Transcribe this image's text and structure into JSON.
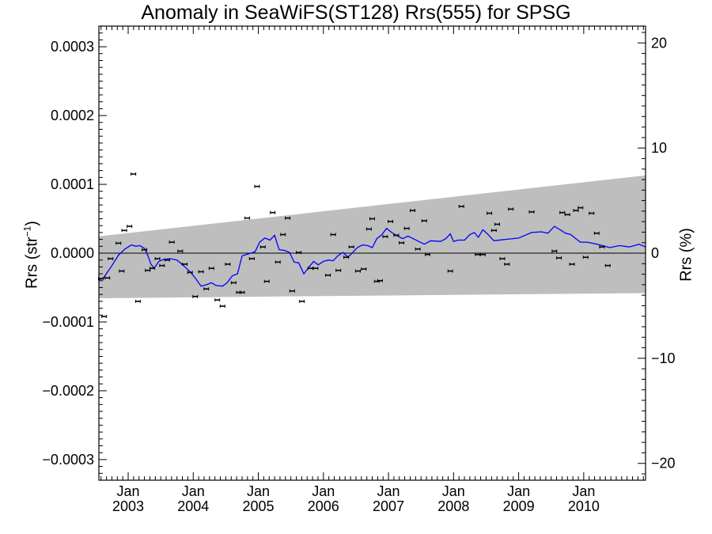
{
  "chart_data": {
    "type": "scatter",
    "title": "Anomaly in SeaWiFS(ST128) Rrs(555) for SPSG",
    "ylabel": {
      "main": "Rrs (str",
      "sup": "−1",
      "close": ")"
    },
    "y2label": "Rrs (%)",
    "ylim": [
      -0.00033,
      0.00033
    ],
    "y2lim": [
      -21.6,
      21.6
    ],
    "xlim": [
      2002.55,
      2010.95
    ],
    "grid": false,
    "y_ticks": [
      {
        "value": 0.0003,
        "label": "0.0003"
      },
      {
        "value": 0.0002,
        "label": "0.0002"
      },
      {
        "value": 0.0001,
        "label": "0.0001"
      },
      {
        "value": 0.0,
        "label": "0.0000"
      },
      {
        "value": -0.0001,
        "label": "−0.0001"
      },
      {
        "value": -0.0002,
        "label": "−0.0002"
      },
      {
        "value": -0.0003,
        "label": "−0.0003"
      }
    ],
    "y2_ticks": [
      {
        "value": 20,
        "label": "20"
      },
      {
        "value": 10,
        "label": "10"
      },
      {
        "value": 0,
        "label": "0"
      },
      {
        "value": -10,
        "label": "−10"
      },
      {
        "value": -20,
        "label": "−20"
      }
    ],
    "x_ticks": [
      {
        "value": 2003.0,
        "month": "Jan",
        "year": "2003"
      },
      {
        "value": 2004.0,
        "month": "Jan",
        "year": "2004"
      },
      {
        "value": 2005.0,
        "month": "Jan",
        "year": "2005"
      },
      {
        "value": 2006.0,
        "month": "Jan",
        "year": "2006"
      },
      {
        "value": 2007.0,
        "month": "Jan",
        "year": "2007"
      },
      {
        "value": 2008.0,
        "month": "Jan",
        "year": "2008"
      },
      {
        "value": 2009.0,
        "month": "Jan",
        "year": "2009"
      },
      {
        "value": 2010.0,
        "month": "Jan",
        "year": "2010"
      }
    ],
    "band": {
      "upper": [
        [
          2002.55,
          2.45e-05
        ],
        [
          2010.95,
          0.000113
        ]
      ],
      "lower": [
        [
          2002.55,
          -6.55e-05
        ],
        [
          2010.95,
          -5.8e-05
        ]
      ],
      "color": "#bebebe"
    },
    "colors": {
      "line": "#0000ff",
      "points": "#000000",
      "zero": "#000000"
    },
    "points": [
      [
        2002.58,
        -3.7e-05
      ],
      [
        2002.63,
        -9.2e-05
      ],
      [
        2002.68,
        -3.6e-05
      ],
      [
        2002.73,
        -8e-06
      ],
      [
        2002.85,
        1.45e-05
      ],
      [
        2002.9,
        -2.6e-05
      ],
      [
        2002.94,
        3.3e-05
      ],
      [
        2003.02,
        3.9e-05
      ],
      [
        2003.08,
        0.000115
      ],
      [
        2003.15,
        -7e-05
      ],
      [
        2003.25,
        5e-06
      ],
      [
        2003.3,
        -2.5e-05
      ],
      [
        2003.37,
        -2.2e-05
      ],
      [
        2003.45,
        -8e-06
      ],
      [
        2003.52,
        -1.8e-05
      ],
      [
        2003.6,
        -1e-05
      ],
      [
        2003.67,
        1.6e-05
      ],
      [
        2003.8,
        3e-06
      ],
      [
        2003.87,
        -1.6e-05
      ],
      [
        2003.95,
        -2.8e-05
      ],
      [
        2004.03,
        -6.3e-05
      ],
      [
        2004.12,
        -2.7e-05
      ],
      [
        2004.2,
        -5.2e-05
      ],
      [
        2004.28,
        -2.2e-05
      ],
      [
        2004.37,
        -6.8e-05
      ],
      [
        2004.45,
        -7.7e-05
      ],
      [
        2004.53,
        -1.6e-05
      ],
      [
        2004.62,
        -4.3e-05
      ],
      [
        2004.7,
        -5.7e-05
      ],
      [
        2004.75,
        -5.7e-05
      ],
      [
        2004.83,
        5.1e-05
      ],
      [
        2004.9,
        -8e-06
      ],
      [
        2004.98,
        9.7e-05
      ],
      [
        2005.07,
        9e-06
      ],
      [
        2005.13,
        -4.1e-05
      ],
      [
        2005.22,
        5.9e-05
      ],
      [
        2005.3,
        -1.3e-05
      ],
      [
        2005.38,
        2.7e-05
      ],
      [
        2005.45,
        5.1e-05
      ],
      [
        2005.52,
        -5.5e-05
      ],
      [
        2005.62,
        1e-06
      ],
      [
        2005.67,
        -7e-05
      ],
      [
        2005.8,
        -2.2e-05
      ],
      [
        2005.88,
        -2.2e-05
      ],
      [
        2006.07,
        -3.2e-05
      ],
      [
        2006.15,
        2.7e-05
      ],
      [
        2006.23,
        -2.5e-05
      ],
      [
        2006.35,
        -6e-06
      ],
      [
        2006.43,
        9e-06
      ],
      [
        2006.53,
        -2.6e-05
      ],
      [
        2006.62,
        -2.3e-05
      ],
      [
        2006.7,
        3.5e-05
      ],
      [
        2006.75,
        5e-05
      ],
      [
        2006.82,
        -4.1e-05
      ],
      [
        2006.87,
        -4e-05
      ],
      [
        2006.95,
        2.4e-05
      ],
      [
        2007.03,
        4.6e-05
      ],
      [
        2007.12,
        2.6e-05
      ],
      [
        2007.2,
        1.5e-05
      ],
      [
        2007.28,
        3.6e-05
      ],
      [
        2007.37,
        6.2e-05
      ],
      [
        2007.45,
        6e-06
      ],
      [
        2007.55,
        4.7e-05
      ],
      [
        2007.6,
        -2e-06
      ],
      [
        2007.95,
        -2.6e-05
      ],
      [
        2008.12,
        6.8e-05
      ],
      [
        2008.37,
        -2e-06
      ],
      [
        2008.45,
        -2e-06
      ],
      [
        2008.55,
        5.8e-05
      ],
      [
        2008.62,
        3.3e-05
      ],
      [
        2008.67,
        4.2e-05
      ],
      [
        2008.75,
        -8e-06
      ],
      [
        2008.82,
        -1.6e-05
      ],
      [
        2008.88,
        6.4e-05
      ],
      [
        2009.2,
        6e-05
      ],
      [
        2009.55,
        3e-06
      ],
      [
        2009.62,
        -7e-06
      ],
      [
        2009.67,
        5.9e-05
      ],
      [
        2009.75,
        5.6e-05
      ],
      [
        2009.82,
        -1.6e-05
      ],
      [
        2009.88,
        6.2e-05
      ],
      [
        2009.95,
        6.6e-05
      ],
      [
        2010.03,
        -6e-06
      ],
      [
        2010.12,
        5.8e-05
      ],
      [
        2010.2,
        2.9e-05
      ],
      [
        2010.28,
        9e-06
      ],
      [
        2010.37,
        -1.8e-05
      ]
    ],
    "line": [
      [
        2002.55,
        -3.9e-05
      ],
      [
        2002.62,
        -3.6e-05
      ],
      [
        2002.75,
        -1.8e-05
      ],
      [
        2002.85,
        -3e-06
      ],
      [
        2002.95,
        6e-06
      ],
      [
        2003.05,
        1.2e-05
      ],
      [
        2003.12,
        1e-05
      ],
      [
        2003.18,
        1.1e-05
      ],
      [
        2003.25,
        7e-06
      ],
      [
        2003.3,
        -3e-06
      ],
      [
        2003.35,
        -1.6e-05
      ],
      [
        2003.4,
        -2.2e-05
      ],
      [
        2003.47,
        -1.2e-05
      ],
      [
        2003.55,
        -9e-06
      ],
      [
        2003.65,
        -8e-06
      ],
      [
        2003.75,
        -1e-05
      ],
      [
        2003.85,
        -1.8e-05
      ],
      [
        2003.95,
        -2.7e-05
      ],
      [
        2004.03,
        -3.6e-05
      ],
      [
        2004.12,
        -4.8e-05
      ],
      [
        2004.2,
        -4.6e-05
      ],
      [
        2004.28,
        -4.3e-05
      ],
      [
        2004.35,
        -4.7e-05
      ],
      [
        2004.45,
        -4.8e-05
      ],
      [
        2004.52,
        -4.3e-05
      ],
      [
        2004.6,
        -3.3e-05
      ],
      [
        2004.68,
        -3e-05
      ],
      [
        2004.75,
        -4e-06
      ],
      [
        2004.85,
        -1e-06
      ],
      [
        2004.95,
        2e-06
      ],
      [
        2005.02,
        1.6e-05
      ],
      [
        2005.1,
        2.2e-05
      ],
      [
        2005.18,
        1.9e-05
      ],
      [
        2005.25,
        2.6e-05
      ],
      [
        2005.32,
        5e-06
      ],
      [
        2005.4,
        4e-06
      ],
      [
        2005.48,
        1e-06
      ],
      [
        2005.55,
        -1.3e-05
      ],
      [
        2005.62,
        -1.4e-05
      ],
      [
        2005.7,
        -3e-05
      ],
      [
        2005.78,
        -2e-05
      ],
      [
        2005.85,
        -1.2e-05
      ],
      [
        2005.92,
        -1.7e-05
      ],
      [
        2006.0,
        -1.2e-05
      ],
      [
        2006.08,
        -1e-05
      ],
      [
        2006.15,
        -1.1e-05
      ],
      [
        2006.22,
        -4e-06
      ],
      [
        2006.3,
        1e-06
      ],
      [
        2006.38,
        -6e-06
      ],
      [
        2006.45,
        1e-06
      ],
      [
        2006.52,
        8e-06
      ],
      [
        2006.6,
        1.2e-05
      ],
      [
        2006.68,
        1.1e-05
      ],
      [
        2006.75,
        8e-06
      ],
      [
        2006.82,
        2.1e-05
      ],
      [
        2006.9,
        2.7e-05
      ],
      [
        2006.97,
        3.6e-05
      ],
      [
        2007.05,
        3e-05
      ],
      [
        2007.12,
        2.6e-05
      ],
      [
        2007.22,
        2.1e-05
      ],
      [
        2007.3,
        2.5e-05
      ],
      [
        2007.4,
        2e-05
      ],
      [
        2007.55,
        1.3e-05
      ],
      [
        2007.65,
        1.8e-05
      ],
      [
        2007.8,
        1.7e-05
      ],
      [
        2007.88,
        2.1e-05
      ],
      [
        2007.95,
        2.8e-05
      ],
      [
        2008.0,
        1.7e-05
      ],
      [
        2008.07,
        1.9e-05
      ],
      [
        2008.17,
        1.9e-05
      ],
      [
        2008.25,
        2.7e-05
      ],
      [
        2008.32,
        3e-05
      ],
      [
        2008.38,
        2.3e-05
      ],
      [
        2008.45,
        3.4e-05
      ],
      [
        2008.52,
        2.8e-05
      ],
      [
        2008.62,
        1.8e-05
      ],
      [
        2008.8,
        2e-05
      ],
      [
        2009.0,
        2.2e-05
      ],
      [
        2009.2,
        3e-05
      ],
      [
        2009.35,
        3.1e-05
      ],
      [
        2009.45,
        2.9e-05
      ],
      [
        2009.55,
        3.9e-05
      ],
      [
        2009.62,
        3.5e-05
      ],
      [
        2009.72,
        2.9e-05
      ],
      [
        2009.8,
        2.7e-05
      ],
      [
        2009.88,
        2.1e-05
      ],
      [
        2009.95,
        1.6e-05
      ],
      [
        2010.05,
        1.6e-05
      ],
      [
        2010.15,
        1.4e-05
      ],
      [
        2010.25,
        1.2e-05
      ],
      [
        2010.4,
        8e-06
      ],
      [
        2010.55,
        1.1e-05
      ],
      [
        2010.7,
        9e-06
      ],
      [
        2010.85,
        1.3e-05
      ],
      [
        2010.95,
        9e-06
      ]
    ]
  }
}
